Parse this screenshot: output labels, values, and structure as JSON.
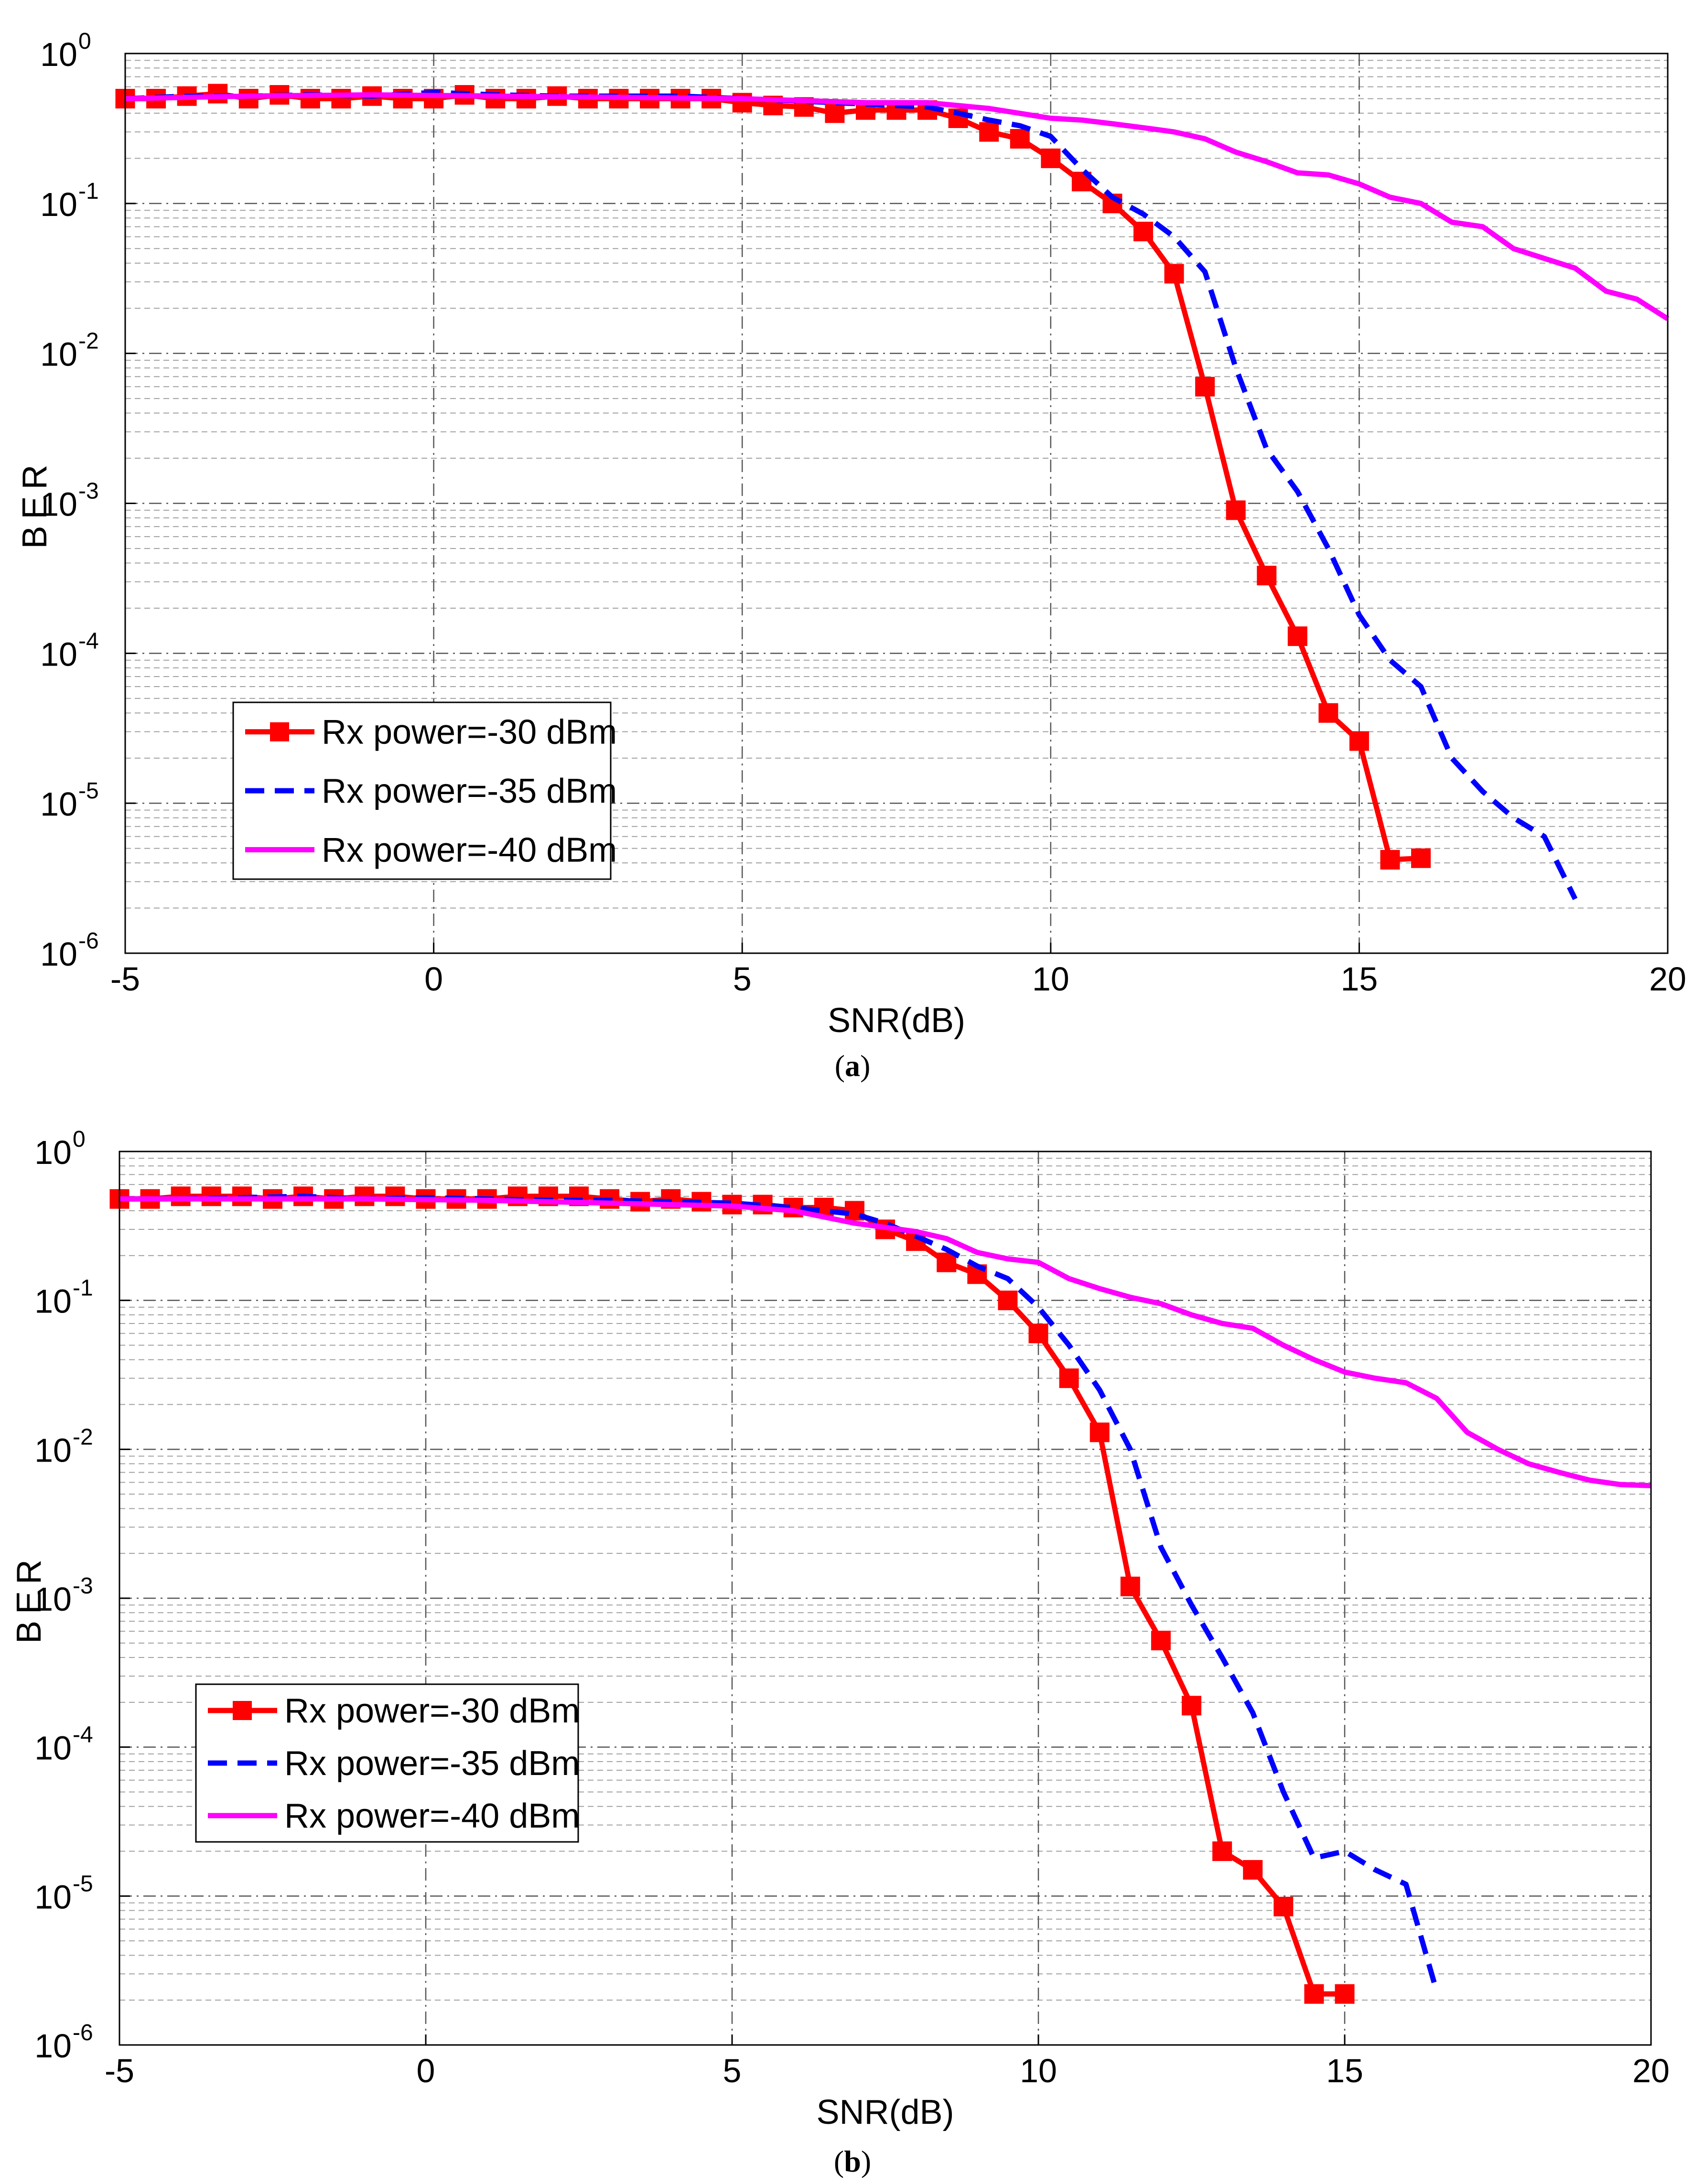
{
  "colors": {
    "red": "#ff0000",
    "blue": "#0000ff",
    "magenta": "#ff00ff",
    "grid": "#555555",
    "axis": "#000000"
  },
  "chart_data": [
    {
      "type": "line",
      "caption": "a",
      "xlabel": "SNR(dB)",
      "ylabel": "BER",
      "yscale": "log",
      "xlim": [
        -5,
        20
      ],
      "ylim": [
        1e-06,
        1
      ],
      "xticks": [
        "-5",
        "0",
        "5",
        "10",
        "15",
        "20"
      ],
      "yticks": [
        {
          "base": "10",
          "exp": "0"
        },
        {
          "base": "10",
          "exp": "-1"
        },
        {
          "base": "10",
          "exp": "-2"
        },
        {
          "base": "10",
          "exp": "-3"
        },
        {
          "base": "10",
          "exp": "-4"
        },
        {
          "base": "10",
          "exp": "-5"
        },
        {
          "base": "10",
          "exp": "-6"
        }
      ],
      "legend_position": "lower-left",
      "grid": true,
      "series": [
        {
          "name": "Rx power=-30 dBm",
          "color": "#ff0000",
          "style": "solid-square",
          "x": [
            -5,
            -4.5,
            -4,
            -3.5,
            -3,
            -2.5,
            -2,
            -1.5,
            -1,
            -0.5,
            0,
            0.5,
            1,
            1.5,
            2,
            2.5,
            3,
            3.5,
            4,
            4.5,
            5,
            5.5,
            6,
            6.5,
            7,
            7.5,
            8,
            8.5,
            9,
            9.5,
            10,
            10.5,
            11,
            11.5,
            12,
            12.5,
            13,
            13.5,
            14,
            14.5,
            15,
            15.5,
            16
          ],
          "y": [
            0.5,
            0.5,
            0.52,
            0.54,
            0.5,
            0.53,
            0.5,
            0.5,
            0.52,
            0.5,
            0.5,
            0.53,
            0.5,
            0.5,
            0.52,
            0.5,
            0.5,
            0.5,
            0.5,
            0.5,
            0.47,
            0.45,
            0.44,
            0.4,
            0.42,
            0.42,
            0.42,
            0.37,
            0.3,
            0.27,
            0.2,
            0.14,
            0.1,
            0.065,
            0.034,
            0.006,
            0.0009,
            0.00033,
            0.00013,
            4e-05,
            2.6e-05,
            4.2e-06,
            4.3e-06
          ]
        },
        {
          "name": "Rx power=-35 dBm",
          "color": "#0000ff",
          "style": "dashed",
          "x": [
            -5,
            -4,
            -3,
            -2,
            -1,
            0,
            1,
            2,
            3,
            4,
            5,
            6,
            7,
            8,
            8.5,
            9,
            9.5,
            10,
            10.5,
            11,
            11.5,
            12,
            12.5,
            13,
            13.5,
            14,
            14.5,
            15,
            15.5,
            16,
            16.5,
            17,
            17.5,
            18,
            18.5
          ],
          "y": [
            0.5,
            0.52,
            0.52,
            0.53,
            0.52,
            0.55,
            0.53,
            0.52,
            0.52,
            0.52,
            0.5,
            0.48,
            0.46,
            0.44,
            0.4,
            0.36,
            0.33,
            0.28,
            0.17,
            0.11,
            0.085,
            0.06,
            0.035,
            0.008,
            0.0023,
            0.0012,
            0.0005,
            0.00018,
            9e-05,
            6e-05,
            2e-05,
            1.2e-05,
            8e-06,
            6e-06,
            2.3e-06
          ]
        },
        {
          "name": "Rx power=-40 dBm",
          "color": "#ff00ff",
          "style": "solid",
          "x": [
            -5,
            -3,
            -1,
            1,
            3,
            5,
            7,
            8,
            9,
            10,
            10.5,
            11,
            11.5,
            12,
            12.5,
            13,
            13.5,
            14,
            14.5,
            15,
            15.5,
            16,
            16.5,
            17,
            17.5,
            18,
            18.5,
            19,
            19.5,
            20
          ],
          "y": [
            0.5,
            0.52,
            0.53,
            0.52,
            0.51,
            0.5,
            0.47,
            0.47,
            0.43,
            0.37,
            0.36,
            0.34,
            0.32,
            0.3,
            0.27,
            0.22,
            0.19,
            0.16,
            0.155,
            0.135,
            0.11,
            0.1,
            0.075,
            0.07,
            0.05,
            0.043,
            0.037,
            0.026,
            0.023,
            0.017
          ]
        }
      ]
    },
    {
      "type": "line",
      "caption": "b",
      "xlabel": "SNR(dB)",
      "ylabel": "BER",
      "yscale": "log",
      "xlim": [
        -5,
        20
      ],
      "ylim": [
        1e-06,
        1
      ],
      "xticks": [
        "-5",
        "0",
        "5",
        "10",
        "15",
        "20"
      ],
      "yticks": [
        {
          "base": "10",
          "exp": "0"
        },
        {
          "base": "10",
          "exp": "-1"
        },
        {
          "base": "10",
          "exp": "-2"
        },
        {
          "base": "10",
          "exp": "-3"
        },
        {
          "base": "10",
          "exp": "-4"
        },
        {
          "base": "10",
          "exp": "-5"
        },
        {
          "base": "10",
          "exp": "-6"
        }
      ],
      "legend_position": "lower-left",
      "grid": true,
      "series": [
        {
          "name": "Rx power=-30 dBm",
          "color": "#ff0000",
          "style": "solid-square",
          "x": [
            -5,
            -4.5,
            -4,
            -3.5,
            -3,
            -2.5,
            -2,
            -1.5,
            -1,
            -0.5,
            0,
            0.5,
            1,
            1.5,
            2,
            2.5,
            3,
            3.5,
            4,
            4.5,
            5,
            5.5,
            6,
            6.5,
            7,
            7.5,
            8,
            8.5,
            9,
            9.5,
            10,
            10.5,
            11,
            11.5,
            12,
            12.5,
            13,
            13.5,
            14,
            14.5,
            15
          ],
          "y": [
            0.48,
            0.48,
            0.5,
            0.5,
            0.5,
            0.48,
            0.5,
            0.48,
            0.5,
            0.5,
            0.48,
            0.48,
            0.48,
            0.5,
            0.5,
            0.5,
            0.48,
            0.46,
            0.48,
            0.46,
            0.44,
            0.44,
            0.42,
            0.42,
            0.4,
            0.3,
            0.25,
            0.18,
            0.15,
            0.1,
            0.06,
            0.03,
            0.013,
            0.0012,
            0.00052,
            0.00019,
            2e-05,
            1.5e-05,
            8.5e-06,
            2.2e-06,
            2.2e-06
          ]
        },
        {
          "name": "Rx power=-35 dBm",
          "color": "#0000ff",
          "style": "dashed",
          "x": [
            -5,
            -4,
            -3,
            -2,
            -1,
            0,
            1,
            2,
            3,
            4,
            5,
            6,
            7,
            7.5,
            8,
            8.5,
            9,
            9.5,
            10,
            10.5,
            11,
            11.5,
            12,
            12.5,
            13,
            13.5,
            14,
            14.5,
            15,
            15.5,
            16,
            16.5
          ],
          "y": [
            0.48,
            0.48,
            0.49,
            0.5,
            0.48,
            0.49,
            0.48,
            0.47,
            0.47,
            0.46,
            0.45,
            0.42,
            0.38,
            0.33,
            0.27,
            0.22,
            0.17,
            0.14,
            0.09,
            0.05,
            0.025,
            0.01,
            0.0022,
            0.0009,
            0.0004,
            0.00017,
            5e-05,
            1.8e-05,
            2e-05,
            1.5e-05,
            1.2e-05,
            2.3e-06
          ]
        },
        {
          "name": "Rx power=-40 dBm",
          "color": "#ff00ff",
          "style": "solid",
          "x": [
            -5,
            -3,
            -1,
            1,
            3,
            5,
            6,
            7,
            8,
            8.5,
            9,
            9.5,
            10,
            10.5,
            11,
            11.5,
            12,
            12.5,
            13,
            13.5,
            14,
            14.5,
            15,
            15.5,
            16,
            16.5,
            17,
            17.5,
            18,
            18.5,
            19,
            19.5,
            20
          ],
          "y": [
            0.48,
            0.48,
            0.48,
            0.47,
            0.45,
            0.43,
            0.4,
            0.33,
            0.29,
            0.26,
            0.21,
            0.19,
            0.18,
            0.14,
            0.12,
            0.105,
            0.095,
            0.08,
            0.07,
            0.065,
            0.05,
            0.04,
            0.033,
            0.03,
            0.028,
            0.022,
            0.013,
            0.01,
            0.008,
            0.007,
            0.0062,
            0.0058,
            0.0057
          ]
        }
      ]
    }
  ]
}
